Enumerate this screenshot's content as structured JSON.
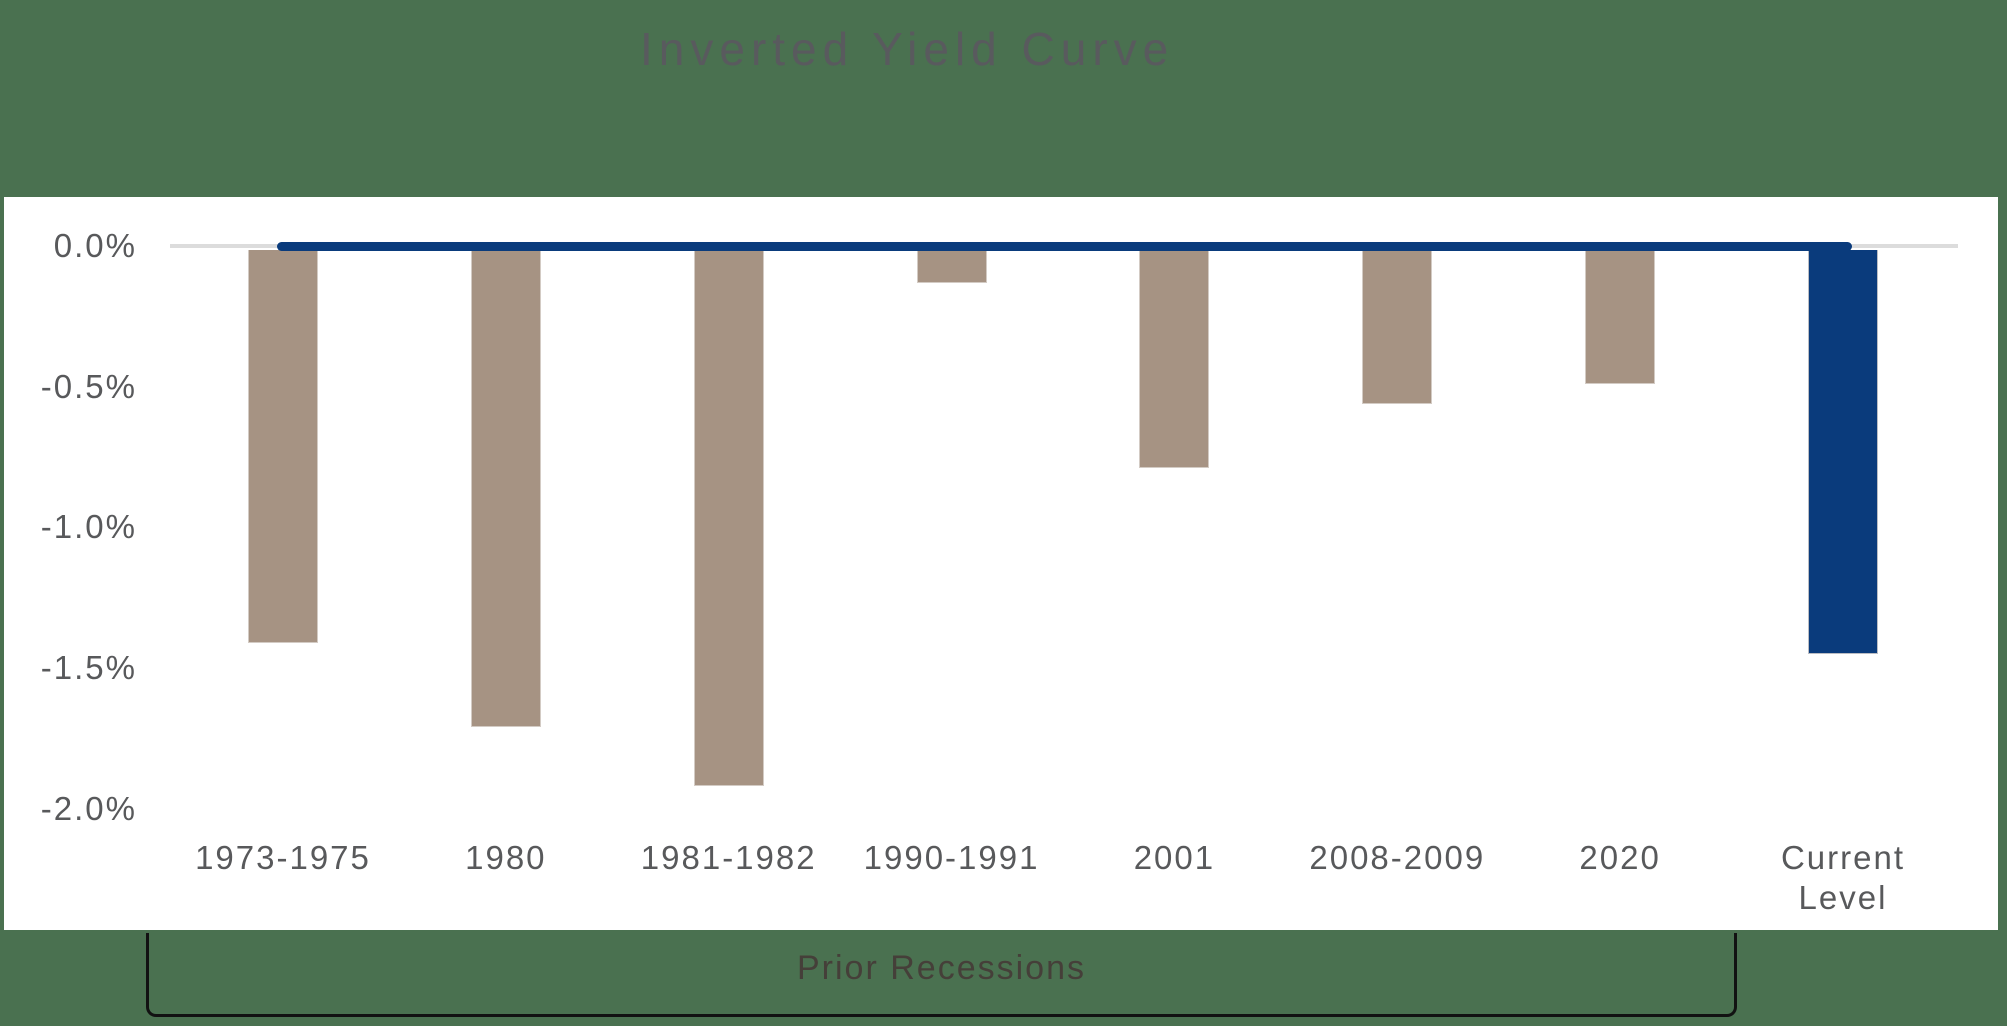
{
  "chart_data": {
    "type": "bar",
    "title": "Inverted Yield Curve",
    "categories": [
      "1973-1975",
      "1980",
      "1981-1982",
      "1990-1991",
      "2001",
      "2008-2009",
      "2020",
      "Current\nLevel"
    ],
    "values": [
      -1.41,
      -1.71,
      -1.92,
      -0.13,
      -0.79,
      -0.56,
      -0.49,
      -1.45
    ],
    "bar_colors": [
      "#a69383",
      "#a69383",
      "#a69383",
      "#a69383",
      "#a69383",
      "#a69383",
      "#a69383",
      "#0a3b7c"
    ],
    "y_ticks": [
      "0.0%",
      "-0.5%",
      "-1.0%",
      "-1.5%",
      "-2.0%"
    ],
    "y_tick_values": [
      0,
      -0.5,
      -1.0,
      -1.5,
      -2.0
    ],
    "ylim": [
      -2.07,
      0
    ],
    "xlabel": "",
    "ylabel": "",
    "legend": "none",
    "grid": "zero-line-only",
    "annotation": "Prior Recessions",
    "annotation_span": [
      "1973-1975",
      "2020"
    ]
  },
  "colors": {
    "background": "#4a7150",
    "panel": "#ffffff",
    "prior_recession_bar": "#a69383",
    "current_level_bar": "#0a3b7c",
    "zero_baseline": "#0a3b7c",
    "zero_gridline": "#dcdcdc",
    "title_text": "#595a5e",
    "axis_text": "#58595b",
    "annotation_text": "#453f39",
    "bracket_line": "#121212"
  }
}
